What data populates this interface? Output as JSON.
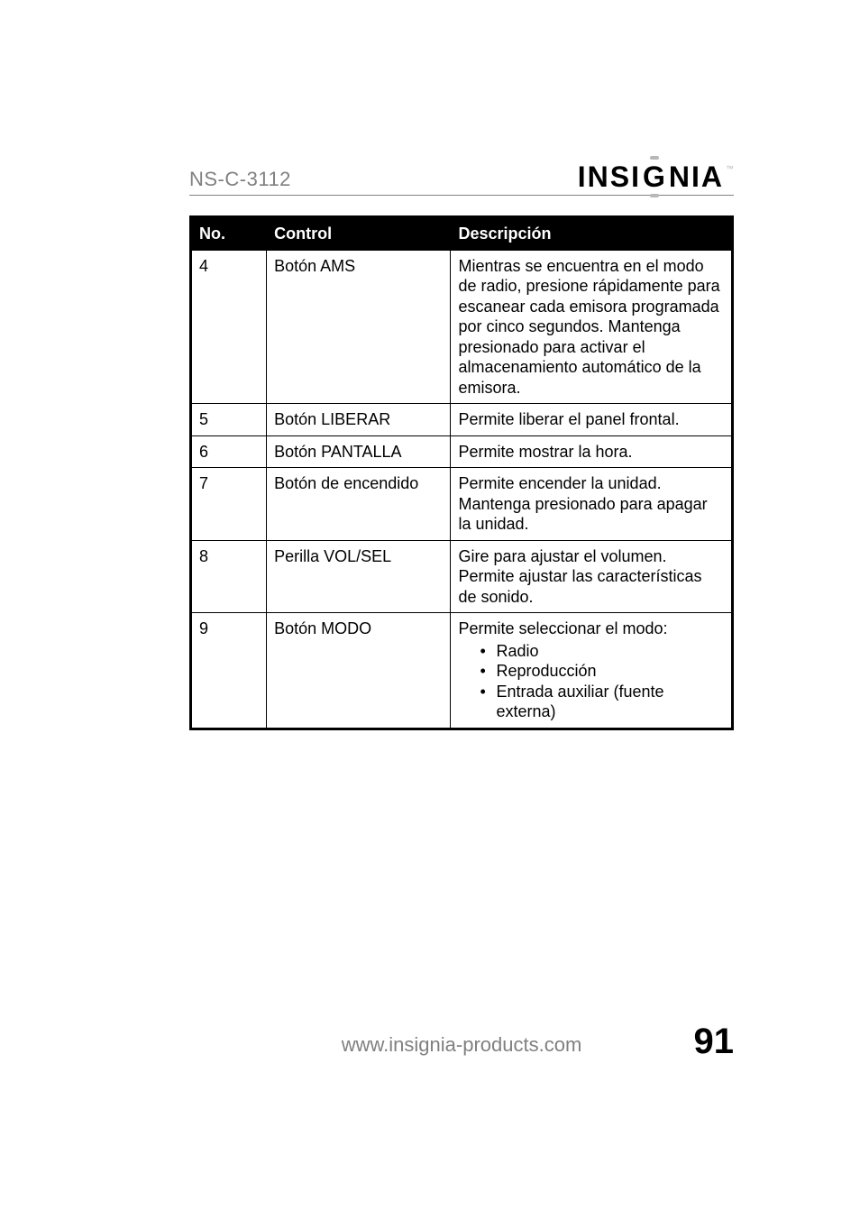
{
  "header": {
    "model": "NS-C-3112",
    "brand_pre": "INSI",
    "brand_g": "G",
    "brand_post": "NIA",
    "tm": "™"
  },
  "table": {
    "columns": [
      "No.",
      "Control",
      "Descripción"
    ],
    "rows": [
      {
        "no": "4",
        "control": "Botón AMS",
        "desc": "Mientras se encuentra en el modo de radio, presione rápidamente para escanear cada emisora programada por cinco segundos. Mantenga presionado para activar el almacenamiento automático de la emisora."
      },
      {
        "no": "5",
        "control": "Botón LIBERAR",
        "desc": "Permite liberar el panel frontal."
      },
      {
        "no": "6",
        "control": "Botón PANTALLA",
        "desc": "Permite mostrar la hora."
      },
      {
        "no": "7",
        "control": "Botón de encendido",
        "desc": "Permite encender la unidad. Mantenga presionado para apagar la unidad."
      },
      {
        "no": "8",
        "control": "Perilla VOL/SEL",
        "desc": "Gire para ajustar el volumen. Permite ajustar las características de sonido."
      },
      {
        "no": "9",
        "control": "Botón MODO",
        "desc_intro": "Permite seleccionar el modo:",
        "modes": [
          "Radio",
          "Reproducción",
          "Entrada auxiliar (fuente externa)"
        ]
      }
    ]
  },
  "footer": {
    "url": "www.insignia-products.com",
    "page_number": "91"
  },
  "colors": {
    "page_bg": "#ffffff",
    "text": "#000000",
    "muted": "#808080",
    "accent": "#b7b7b7",
    "table_header_bg": "#000000",
    "table_header_text": "#ffffff",
    "table_border": "#000000"
  }
}
